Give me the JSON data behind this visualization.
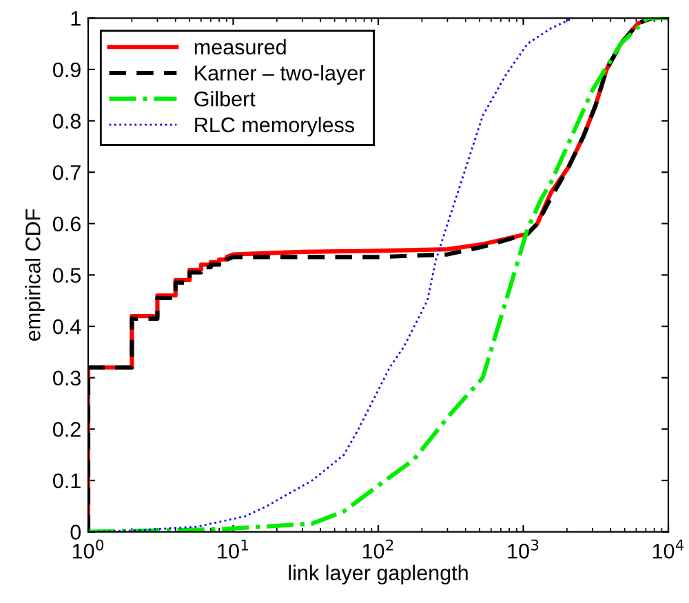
{
  "chart_data": {
    "type": "line",
    "xlabel": "link layer gaplength",
    "ylabel": "empirical CDF",
    "log": "x",
    "xlim": [
      1,
      10000
    ],
    "ylim": [
      0,
      1
    ],
    "xticks": [
      {
        "value": 1,
        "label": "10$^{0}$"
      },
      {
        "value": 10,
        "label": "10$^{1}$"
      },
      {
        "value": 100,
        "label": "10$^{2}$"
      },
      {
        "value": 1000,
        "label": "10$^{3}$"
      },
      {
        "value": 10000,
        "label": "10$^{4}$"
      }
    ],
    "yticks": [
      0,
      0.1,
      0.2,
      0.3,
      0.4,
      0.5,
      0.6,
      0.7,
      0.8,
      0.9,
      1
    ],
    "grid": false,
    "legend": "top left",
    "series": [
      {
        "name": "measured",
        "color": "#ff0000",
        "line_style": "solid",
        "x": [
          1,
          1,
          2,
          2,
          3,
          3,
          4,
          4,
          5,
          5,
          6,
          6,
          7,
          7,
          8,
          8,
          9,
          9,
          10,
          30,
          100,
          300,
          525,
          1070,
          1250,
          1550,
          2050,
          2600,
          3150,
          3750,
          4700,
          6200,
          7700
        ],
        "values": [
          0,
          0.32,
          0.32,
          0.42,
          0.42,
          0.46,
          0.46,
          0.49,
          0.49,
          0.51,
          0.51,
          0.52,
          0.52,
          0.525,
          0.525,
          0.53,
          0.53,
          0.535,
          0.54,
          0.545,
          0.547,
          0.55,
          0.56,
          0.58,
          0.6,
          0.66,
          0.71,
          0.77,
          0.83,
          0.9,
          0.95,
          0.99,
          1
        ]
      },
      {
        "name": "Karner – two-layer",
        "color": "#000000",
        "line_style": "dashed",
        "x": [
          1,
          1,
          2,
          2,
          3,
          3,
          4,
          4,
          5,
          5,
          6,
          6,
          7,
          7,
          8,
          8,
          9,
          9,
          10,
          30,
          100,
          300,
          525,
          1070,
          1250,
          1550,
          2050,
          2600,
          3150,
          3750,
          4700,
          6200,
          7700,
          10000
        ],
        "values": [
          0,
          0.32,
          0.32,
          0.415,
          0.415,
          0.455,
          0.455,
          0.485,
          0.485,
          0.505,
          0.505,
          0.515,
          0.515,
          0.52,
          0.52,
          0.525,
          0.525,
          0.53,
          0.535,
          0.535,
          0.535,
          0.54,
          0.555,
          0.58,
          0.6,
          0.65,
          0.71,
          0.77,
          0.83,
          0.9,
          0.95,
          0.99,
          1,
          1
        ]
      },
      {
        "name": "Gilbert",
        "color": "#00ee00",
        "line_style": "dashdot",
        "x": [
          1,
          8,
          35,
          58,
          100,
          175,
          316,
          525,
          760,
          1070,
          1340,
          1550,
          3000,
          4700,
          7200,
          10000
        ],
        "values": [
          0,
          0.005,
          0.016,
          0.04,
          0.09,
          0.14,
          0.23,
          0.3,
          0.45,
          0.59,
          0.65,
          0.68,
          0.86,
          0.95,
          1,
          1
        ]
      },
      {
        "name": "RLC memoryless",
        "color": "#0000ff",
        "line_style": "dotted",
        "x": [
          1,
          1.9,
          5.6,
          12,
          17,
          35,
          58,
          73,
          120,
          150,
          218,
          250,
          525,
          760,
          1070,
          1550,
          2200
        ],
        "values": [
          0,
          0.002,
          0.01,
          0.03,
          0.05,
          0.1,
          0.15,
          0.2,
          0.32,
          0.36,
          0.45,
          0.53,
          0.81,
          0.89,
          0.95,
          0.98,
          1
        ]
      }
    ]
  }
}
